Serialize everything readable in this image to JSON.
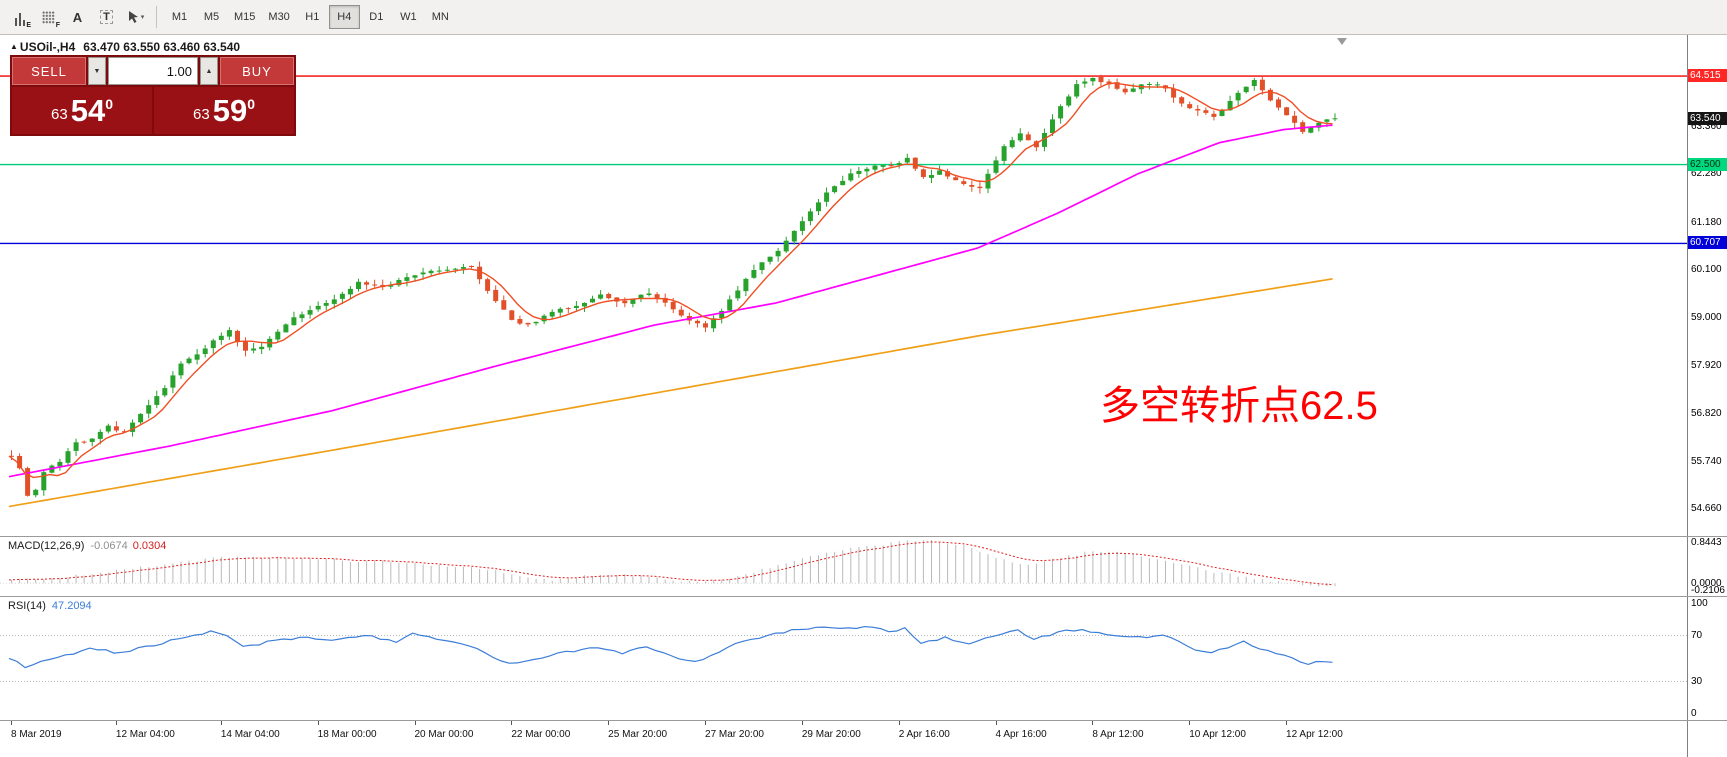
{
  "toolbar": {
    "tools": [
      {
        "name": "bar-chart-tool",
        "sub": "E"
      },
      {
        "name": "grid-tool",
        "sub": "F"
      },
      {
        "name": "text-tool",
        "sub": ""
      },
      {
        "name": "text-label-tool",
        "sub": ""
      },
      {
        "name": "cursor-tool",
        "sub": ""
      }
    ],
    "timeframes": [
      "M1",
      "M5",
      "M15",
      "M30",
      "H1",
      "H4",
      "D1",
      "W1",
      "MN"
    ],
    "active_timeframe": "H4"
  },
  "chart": {
    "header": {
      "arrow": "▲",
      "symbol": "USOil-,H4",
      "ohlc": "63.470 63.550 63.460 63.540"
    }
  },
  "trade_panel": {
    "sell_label": "SELL",
    "buy_label": "BUY",
    "volume": "1.00",
    "spin_down": "▼",
    "spin_up": "▲",
    "sell_price": {
      "small": "63",
      "big": "54",
      "sup": "0"
    },
    "buy_price": {
      "small": "63",
      "big": "59",
      "sup": "0"
    }
  },
  "annotation": {
    "text": "多空转折点62.5",
    "color": "#ff0000"
  },
  "macd_panel": {
    "name": "MACD(12,26,9)",
    "value_main": "-0.0674",
    "value_signal": "0.0304"
  },
  "rsi_panel": {
    "name": "RSI(14)",
    "value": "47.2094"
  },
  "chart_data": {
    "type": "candlestick",
    "symbol": "USOil-",
    "timeframe": "H4",
    "ohlc_header": {
      "open": "63.470",
      "high": "63.550",
      "low": "63.460",
      "close": "63.540"
    },
    "candle_count": 165,
    "price_range": [
      54.05,
      65.45
    ],
    "candle_colors": {
      "bull": "#27a22d",
      "bear": "#e2502a"
    },
    "close_waypoints": [
      [
        0,
        55.9
      ],
      [
        1,
        55.6
      ],
      [
        2,
        54.95
      ],
      [
        3,
        55.1
      ],
      [
        4,
        55.5
      ],
      [
        6,
        55.75
      ],
      [
        8,
        56.15
      ],
      [
        10,
        56.3
      ],
      [
        12,
        56.55
      ],
      [
        14,
        56.4
      ],
      [
        16,
        56.8
      ],
      [
        18,
        57.2
      ],
      [
        21,
        57.95
      ],
      [
        24,
        58.35
      ],
      [
        27,
        58.7
      ],
      [
        29,
        58.25
      ],
      [
        31,
        58.35
      ],
      [
        34,
        58.9
      ],
      [
        37,
        59.2
      ],
      [
        40,
        59.45
      ],
      [
        43,
        59.8
      ],
      [
        46,
        59.7
      ],
      [
        50,
        60.0
      ],
      [
        54,
        60.1
      ],
      [
        57,
        60.2
      ],
      [
        59,
        59.6
      ],
      [
        62,
        58.95
      ],
      [
        64,
        58.85
      ],
      [
        67,
        59.15
      ],
      [
        70,
        59.3
      ],
      [
        73,
        59.55
      ],
      [
        76,
        59.35
      ],
      [
        79,
        59.6
      ],
      [
        82,
        59.2
      ],
      [
        84,
        58.95
      ],
      [
        86,
        58.8
      ],
      [
        88,
        59.2
      ],
      [
        91,
        59.9
      ],
      [
        93,
        60.3
      ],
      [
        95,
        60.55
      ],
      [
        98,
        61.2
      ],
      [
        101,
        61.85
      ],
      [
        104,
        62.3
      ],
      [
        107,
        62.5
      ],
      [
        109,
        62.45
      ],
      [
        111,
        62.65
      ],
      [
        113,
        62.2
      ],
      [
        115,
        62.35
      ],
      [
        118,
        62.05
      ],
      [
        120,
        61.95
      ],
      [
        123,
        62.9
      ],
      [
        125,
        63.2
      ],
      [
        127,
        62.9
      ],
      [
        130,
        63.8
      ],
      [
        132,
        64.3
      ],
      [
        134,
        64.45
      ],
      [
        136,
        64.35
      ],
      [
        138,
        64.15
      ],
      [
        140,
        64.3
      ],
      [
        142,
        64.35
      ],
      [
        144,
        64.05
      ],
      [
        146,
        63.8
      ],
      [
        149,
        63.6
      ],
      [
        152,
        64.1
      ],
      [
        154,
        64.45
      ],
      [
        156,
        63.95
      ],
      [
        158,
        63.6
      ],
      [
        160,
        63.25
      ],
      [
        162,
        63.45
      ],
      [
        164,
        63.54
      ]
    ],
    "ma_fast": {
      "color": "#f04e23"
    },
    "ma_mid": {
      "color": "#ff00ff",
      "waypoints": [
        [
          0,
          55.4
        ],
        [
          20,
          56.1
        ],
        [
          40,
          56.9
        ],
        [
          60,
          57.9
        ],
        [
          80,
          58.85
        ],
        [
          95,
          59.35
        ],
        [
          107,
          59.95
        ],
        [
          120,
          60.6
        ],
        [
          130,
          61.4
        ],
        [
          140,
          62.3
        ],
        [
          150,
          63.0
        ],
        [
          158,
          63.3
        ],
        [
          164,
          63.4
        ]
      ]
    },
    "ma_slow": {
      "color": "#f0a018",
      "waypoints": [
        [
          0,
          54.72
        ],
        [
          40,
          56.0
        ],
        [
          80,
          57.3
        ],
        [
          120,
          58.6
        ],
        [
          164,
          59.9
        ]
      ]
    },
    "levels": [
      {
        "label": "64.515",
        "price": 64.515,
        "color": "#f20000",
        "label_bg": "#ff2626",
        "label_color": "#ffffff"
      },
      {
        "label": "62.500",
        "price": 62.5,
        "color": "#00cc7a",
        "label_bg": "#00d87f",
        "label_color": "#003311"
      },
      {
        "label": "60.707",
        "price": 60.707,
        "color": "#0000d8",
        "label_bg": "#0000d8",
        "label_color": "#ffffff"
      }
    ],
    "current_price": {
      "label": "63.540",
      "price": 63.54,
      "label_bg": "#151515",
      "label_color": "#ffffff"
    },
    "axis_ticks": [
      {
        "label": "63.360",
        "price": 63.36
      },
      {
        "label": "62.280",
        "price": 62.28
      },
      {
        "label": "61.180",
        "price": 61.18
      },
      {
        "label": "60.100",
        "price": 60.1
      },
      {
        "label": "59.000",
        "price": 59.0
      },
      {
        "label": "57.920",
        "price": 57.92
      },
      {
        "label": "56.820",
        "price": 56.82
      },
      {
        "label": "55.740",
        "price": 55.74
      },
      {
        "label": "54.660",
        "price": 54.66
      }
    ],
    "macd": {
      "range": [
        -0.25,
        0.9
      ],
      "hist_color": "#b9b9b9",
      "signal_color": "#e02020",
      "waypoints": [
        [
          0,
          0.05
        ],
        [
          6,
          0.12
        ],
        [
          12,
          0.22
        ],
        [
          20,
          0.38
        ],
        [
          27,
          0.52
        ],
        [
          34,
          0.5
        ],
        [
          40,
          0.45
        ],
        [
          46,
          0.42
        ],
        [
          52,
          0.36
        ],
        [
          58,
          0.3
        ],
        [
          63,
          0.12
        ],
        [
          67,
          0.05
        ],
        [
          73,
          0.18
        ],
        [
          78,
          0.15
        ],
        [
          84,
          0.03
        ],
        [
          88,
          0.06
        ],
        [
          94,
          0.3
        ],
        [
          100,
          0.55
        ],
        [
          106,
          0.72
        ],
        [
          111,
          0.82
        ],
        [
          114,
          0.84
        ],
        [
          118,
          0.72
        ],
        [
          122,
          0.5
        ],
        [
          126,
          0.35
        ],
        [
          130,
          0.5
        ],
        [
          134,
          0.62
        ],
        [
          137,
          0.6
        ],
        [
          141,
          0.5
        ],
        [
          145,
          0.38
        ],
        [
          149,
          0.22
        ],
        [
          153,
          0.12
        ],
        [
          157,
          0.02
        ],
        [
          160,
          -0.04
        ],
        [
          164,
          -0.067
        ]
      ],
      "axis": [
        {
          "label": "0.8443",
          "value": 0.8443
        },
        {
          "label": "0.0000",
          "value": 0.0
        },
        {
          "label": "-0.2106",
          "value": -0.2106
        }
      ]
    },
    "rsi": {
      "range": [
        0,
        100
      ],
      "color": "#3b7dd8",
      "levels": [
        70,
        30
      ],
      "waypoints": [
        [
          0,
          50
        ],
        [
          2,
          43
        ],
        [
          4,
          48
        ],
        [
          6,
          52
        ],
        [
          10,
          58
        ],
        [
          14,
          55
        ],
        [
          18,
          62
        ],
        [
          22,
          68
        ],
        [
          25,
          73
        ],
        [
          27,
          70
        ],
        [
          29,
          60
        ],
        [
          32,
          64
        ],
        [
          36,
          68
        ],
        [
          40,
          66
        ],
        [
          44,
          70
        ],
        [
          48,
          65
        ],
        [
          50,
          72
        ],
        [
          53,
          66
        ],
        [
          56,
          63
        ],
        [
          59,
          55
        ],
        [
          62,
          45
        ],
        [
          65,
          48
        ],
        [
          68,
          55
        ],
        [
          71,
          58
        ],
        [
          73,
          60
        ],
        [
          76,
          55
        ],
        [
          79,
          61
        ],
        [
          82,
          52
        ],
        [
          85,
          47
        ],
        [
          88,
          56
        ],
        [
          91,
          65
        ],
        [
          94,
          70
        ],
        [
          97,
          74
        ],
        [
          100,
          77
        ],
        [
          103,
          75
        ],
        [
          106,
          78
        ],
        [
          109,
          74
        ],
        [
          111,
          76
        ],
        [
          113,
          64
        ],
        [
          116,
          68
        ],
        [
          119,
          62
        ],
        [
          122,
          70
        ],
        [
          125,
          74
        ],
        [
          127,
          67
        ],
        [
          130,
          73
        ],
        [
          133,
          75
        ],
        [
          135,
          72
        ],
        [
          138,
          70
        ],
        [
          141,
          68
        ],
        [
          143,
          71
        ],
        [
          145,
          64
        ],
        [
          147,
          58
        ],
        [
          149,
          55
        ],
        [
          151,
          60
        ],
        [
          153,
          64
        ],
        [
          155,
          58
        ],
        [
          157,
          54
        ],
        [
          159,
          50
        ],
        [
          161,
          46
        ],
        [
          164,
          47.2
        ]
      ],
      "axis": [
        {
          "label": "100",
          "value": 100
        },
        {
          "label": "70",
          "value": 70
        },
        {
          "label": "30",
          "value": 30
        },
        {
          "label": "0",
          "value": 0
        }
      ]
    },
    "time_labels": [
      {
        "index": 0,
        "text": "8 Mar 2019"
      },
      {
        "index": 13,
        "text": "12 Mar 04:00"
      },
      {
        "index": 26,
        "text": "14 Mar 04:00"
      },
      {
        "index": 38,
        "text": "18 Mar 00:00"
      },
      {
        "index": 50,
        "text": "20 Mar 00:00"
      },
      {
        "index": 62,
        "text": "22 Mar 00:00"
      },
      {
        "index": 74,
        "text": "25 Mar 20:00"
      },
      {
        "index": 86,
        "text": "27 Mar 20:00"
      },
      {
        "index": 98,
        "text": "29 Mar 20:00"
      },
      {
        "index": 110,
        "text": "2 Apr 16:00"
      },
      {
        "index": 122,
        "text": "4 Apr 16:00"
      },
      {
        "index": 134,
        "text": "8 Apr 12:00"
      },
      {
        "index": 146,
        "text": "10 Apr 12:00"
      },
      {
        "index": 158,
        "text": "12 Apr 12:00"
      }
    ]
  }
}
